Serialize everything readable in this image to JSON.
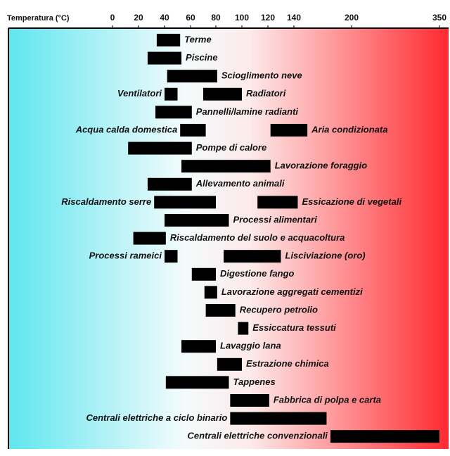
{
  "chart_data": {
    "type": "range-bar",
    "x_axis_label": "Temperatura (°C)",
    "xlim": [
      0,
      350
    ],
    "xticks": [
      0,
      20,
      40,
      60,
      80,
      100,
      120,
      140,
      200,
      350
    ],
    "color": "#000000",
    "bars": [
      {
        "label": "Terme",
        "range": [
          34,
          52
        ]
      },
      {
        "label": "Piscine",
        "range": [
          27,
          53
        ]
      },
      {
        "label": "Scioglimento neve",
        "range": [
          42,
          81
        ]
      },
      {
        "label": "Ventilatori",
        "range": [
          40,
          50
        ]
      },
      {
        "label": "Radiatori",
        "range": [
          70,
          100
        ]
      },
      {
        "label": "Pannelli/lamine radianti",
        "range": [
          33,
          61
        ]
      },
      {
        "label": "Acqua calda domestica",
        "range": [
          52,
          72
        ]
      },
      {
        "label": "Aria condizionata",
        "range": [
          122,
          154
        ]
      },
      {
        "label": "Pompe di calore",
        "range": [
          12,
          61
        ]
      },
      {
        "label": "Lavorazione foraggio",
        "range": [
          53,
          122
        ]
      },
      {
        "label": "Allevamento animali",
        "range": [
          27,
          61
        ]
      },
      {
        "label": "Riscaldamento serre",
        "range": [
          32,
          80
        ]
      },
      {
        "label": "Essicazione di vegetali",
        "range": [
          112,
          144
        ]
      },
      {
        "label": "Processi alimentari",
        "range": [
          40,
          90
        ]
      },
      {
        "label": "Riscaldamento del suolo e acquacoltura",
        "range": [
          16,
          41
        ]
      },
      {
        "label": "Processi rameici",
        "range": [
          40,
          50
        ]
      },
      {
        "label": "Lisciviazione (oro)",
        "range": [
          86,
          130
        ]
      },
      {
        "label": "Digestione fango",
        "range": [
          61,
          80
        ]
      },
      {
        "label": "Lavorazione aggregati cementizi",
        "range": [
          71,
          81
        ]
      },
      {
        "label": "Recupero petrolio",
        "range": [
          72,
          95
        ]
      },
      {
        "label": "Essiccatura tessuti",
        "range": [
          97,
          105
        ]
      },
      {
        "label": "Lavaggio lana",
        "range": [
          53,
          80
        ]
      },
      {
        "label": "Estrazione chimica",
        "range": [
          81,
          100
        ]
      },
      {
        "label": "Tappenes",
        "range": [
          41,
          90
        ]
      },
      {
        "label": "Fabbrica di polpa e carta",
        "range": [
          91,
          121
        ]
      },
      {
        "label": "Centrali elettriche a ciclo binario",
        "range": [
          91,
          174
        ]
      },
      {
        "label": "Centrali elettriche convenzionali",
        "range": [
          178,
          350
        ]
      }
    ]
  }
}
